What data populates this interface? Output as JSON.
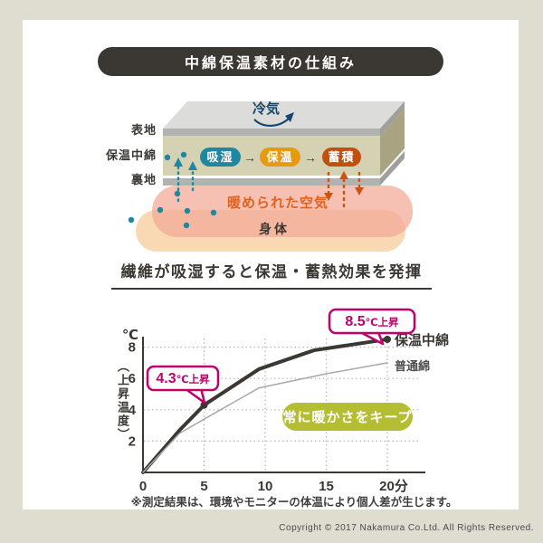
{
  "header": {
    "title": "中綿保温素材の仕組み"
  },
  "diagram": {
    "cold_air_label": "冷気",
    "layer_labels": {
      "outer": "表地",
      "padding": "保温中綿",
      "lining": "裏地"
    },
    "pills": [
      {
        "label": "吸湿",
        "color": "#1f87a0"
      },
      {
        "label": "保温",
        "color": "#e8990f"
      },
      {
        "label": "蓄積",
        "color": "#c14f0e"
      }
    ],
    "pill_arrow": "→",
    "warmed_air_label": "暖められた空気",
    "body_label": "身体",
    "moisture_color": "#1f87a0",
    "heat_color": "#cc5410",
    "cold_air_color": "#17476e"
  },
  "subtitle": "繊維が吸湿すると保温・蓄熱効果を発揮",
  "chart_data": {
    "type": "line",
    "y_unit_label": "℃",
    "ylabel": "（上昇温度）",
    "x_unit": "分",
    "x_ticks": [
      {
        "value": 0,
        "label": "0"
      },
      {
        "value": 5,
        "label": "5"
      },
      {
        "value": 10,
        "label": "10"
      },
      {
        "value": 15,
        "label": "15"
      },
      {
        "value": 20,
        "label": "20分"
      }
    ],
    "y_ticks": [
      2,
      4,
      6,
      8
    ],
    "xlim": [
      0,
      23
    ],
    "ylim": [
      0,
      8.7
    ],
    "grid": true,
    "series": [
      {
        "name": "保温中綿",
        "color": "#3b3833",
        "width": 4,
        "points": [
          [
            0,
            0
          ],
          [
            3,
            2.7
          ],
          [
            5,
            4.3
          ],
          [
            9.5,
            6.6
          ],
          [
            14,
            7.8
          ],
          [
            20,
            8.5
          ]
        ],
        "markers": [
          [
            5,
            4.3
          ],
          [
            20,
            8.5
          ]
        ]
      },
      {
        "name": "普通綿",
        "color": "#a8a8a8",
        "width": 1.5,
        "points": [
          [
            0,
            0
          ],
          [
            3,
            2.5
          ],
          [
            5,
            3.4
          ],
          [
            9.5,
            5.4
          ],
          [
            15,
            6.3
          ],
          [
            20,
            7.0
          ]
        ],
        "markers": []
      }
    ],
    "callouts": [
      {
        "value": "4.3",
        "suffix": "℃上昇"
      },
      {
        "value": "8.5",
        "suffix": "℃上昇"
      }
    ],
    "badge": "常に暖かさをキープ",
    "badge_color": "#b5bd33",
    "accent_color": "#c0006b"
  },
  "footnote": "※測定結果は、環境やモニターの体温により個人差が生じます。",
  "footer": {
    "copyright": "Copyright © 2017 Nakamura Co.Ltd. All Rights Reserved."
  }
}
